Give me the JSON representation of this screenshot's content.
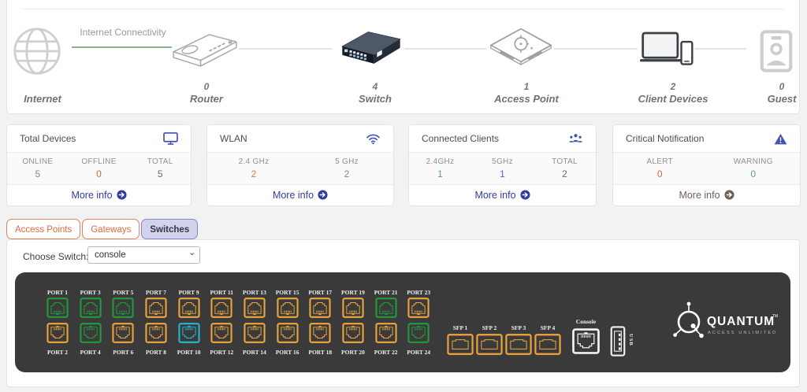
{
  "topology": {
    "connectivity_label": "Internet Connectivity",
    "nodes": [
      {
        "name": "Internet",
        "count": ""
      },
      {
        "name": "Router",
        "count": "0"
      },
      {
        "name": "Switch",
        "count": "4"
      },
      {
        "name": "Access Point",
        "count": "1"
      },
      {
        "name": "Client Devices",
        "count": "2"
      },
      {
        "name": "Guest",
        "count": "0"
      }
    ]
  },
  "cards": [
    {
      "title": "Total Devices",
      "icon": "monitor-icon",
      "link_label": "More info",
      "link_color": "#343b9e",
      "stats": [
        {
          "label": "ONLINE",
          "value": "5",
          "color": "#63a06b"
        },
        {
          "label": "OFFLINE",
          "value": "0",
          "color": "#d9604e"
        },
        {
          "label": "TOTAL",
          "value": "5",
          "color": "#5a6c7d"
        }
      ]
    },
    {
      "title": "WLAN",
      "icon": "wifi-icon",
      "link_label": "More info",
      "link_color": "#343b9e",
      "stats": [
        {
          "label": "2.4 GHz",
          "value": "2",
          "color": "#d9784a"
        },
        {
          "label": "5 GHz",
          "value": "2",
          "color": "#63a06b"
        }
      ]
    },
    {
      "title": "Connected Clients",
      "icon": "clients-icon",
      "link_label": "More info",
      "link_color": "#343b9e",
      "stats": [
        {
          "label": "2.4GHz",
          "value": "1",
          "color": "#63a06b"
        },
        {
          "label": "5GHz",
          "value": "1",
          "color": "#4a69c9"
        },
        {
          "label": "TOTAL",
          "value": "2",
          "color": "#5a6c7d"
        }
      ]
    },
    {
      "title": "Critical Notification",
      "icon": "warning-icon",
      "link_label": "More info",
      "link_color": "#6d6159",
      "stats": [
        {
          "label": "ALERT",
          "value": "0",
          "color": "#d9604e"
        },
        {
          "label": "WARNING",
          "value": "0",
          "color": "#63a06b"
        }
      ]
    }
  ],
  "tabs": [
    {
      "label": "Access Points",
      "active": false
    },
    {
      "label": "Gateways",
      "active": false
    },
    {
      "label": "Switches",
      "active": true
    }
  ],
  "switch_section": {
    "choose_label": "Choose Switch:",
    "selected": "console",
    "ports": [
      {
        "label": "PORT 1",
        "color": "green"
      },
      {
        "label": "PORT 2",
        "color": "orange"
      },
      {
        "label": "PORT 3",
        "color": "green"
      },
      {
        "label": "PORT 4",
        "color": "green"
      },
      {
        "label": "PORT 5",
        "color": "green"
      },
      {
        "label": "PORT 6",
        "color": "orange"
      },
      {
        "label": "PORT 7",
        "color": "orange"
      },
      {
        "label": "PORT 8",
        "color": "orange"
      },
      {
        "label": "PORT 9",
        "color": "orange"
      },
      {
        "label": "PORT 10",
        "color": "cyan"
      },
      {
        "label": "PORT 11",
        "color": "orange"
      },
      {
        "label": "PORT 12",
        "color": "orange"
      },
      {
        "label": "PORT 13",
        "color": "orange"
      },
      {
        "label": "PORT 14",
        "color": "orange"
      },
      {
        "label": "PORT 15",
        "color": "orange"
      },
      {
        "label": "PORT 16",
        "color": "orange"
      },
      {
        "label": "PORT 17",
        "color": "orange"
      },
      {
        "label": "PORT 18",
        "color": "orange"
      },
      {
        "label": "PORT 19",
        "color": "orange"
      },
      {
        "label": "PORT 20",
        "color": "orange"
      },
      {
        "label": "PORT 21",
        "color": "green"
      },
      {
        "label": "PORT 22",
        "color": "orange"
      },
      {
        "label": "PORT 23",
        "color": "orange"
      },
      {
        "label": "PORT 24",
        "color": "green"
      }
    ],
    "sfp": [
      "SFP 1",
      "SFP 2",
      "SFP 3",
      "SFP 4"
    ],
    "console_label": "Console",
    "usb_label": "USB",
    "brand": {
      "name": "QUANTUM",
      "tm": "TM",
      "tagline": "ACCESS UNLIMITED"
    }
  },
  "colors": {
    "green": "#219c3d",
    "orange": "#eea63c",
    "cyan": "#25b8d4"
  }
}
